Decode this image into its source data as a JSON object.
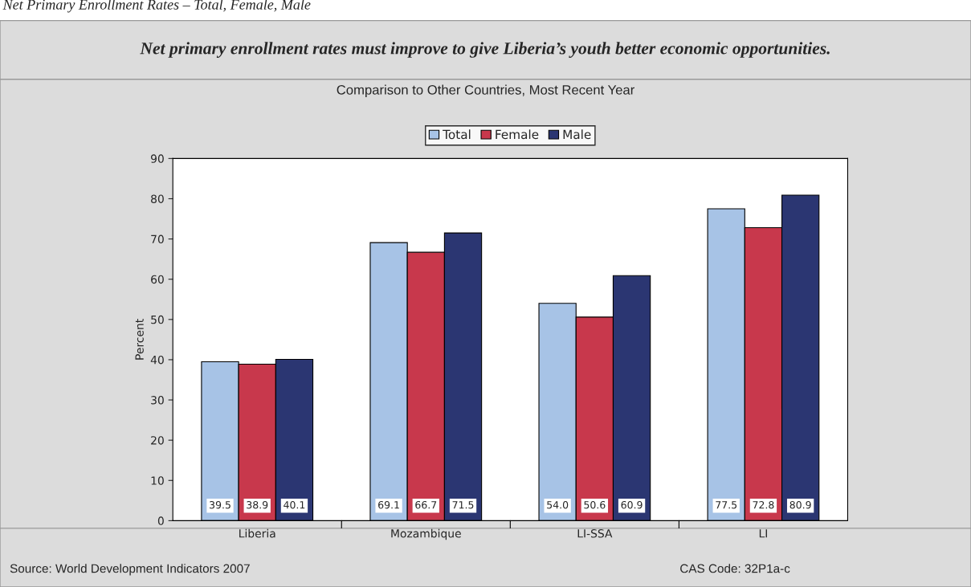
{
  "chart_data": {
    "type": "bar",
    "title": "Net primary enrollment rates must improve to give Liberia’s youth better economic opportunities.",
    "subtitle": "Comparison to Other Countries, Most Recent Year",
    "ylabel": "Percent",
    "categories": [
      "Liberia",
      "Mozambique",
      "LI-SSA",
      "LI"
    ],
    "series": [
      {
        "name": "Total",
        "color": "#a7c3e6",
        "values": [
          39.5,
          69.1,
          54.0,
          77.5
        ],
        "value_labels": [
          "39.5",
          "69.1",
          "54.0",
          "77.5"
        ]
      },
      {
        "name": "Female",
        "color": "#c8384c",
        "values": [
          38.9,
          66.7,
          50.6,
          72.8
        ],
        "value_labels": [
          "38.9",
          "66.7",
          "50.6",
          "72.8"
        ]
      },
      {
        "name": "Male",
        "color": "#2b3672",
        "values": [
          40.1,
          71.5,
          60.9,
          80.9
        ],
        "value_labels": [
          "40.1",
          "71.5",
          "60.9",
          "80.9"
        ]
      }
    ],
    "ylim": [
      0,
      90
    ],
    "yticks": [
      0,
      10,
      20,
      30,
      40,
      50,
      60,
      70,
      80,
      90
    ],
    "grid": false,
    "legend": "top",
    "annotations": [
      "Net Primary Enrollment Rates – Total, Female, Male",
      "Source: World Development Indicators 2007",
      "CAS Code: 32P1a-c"
    ]
  }
}
